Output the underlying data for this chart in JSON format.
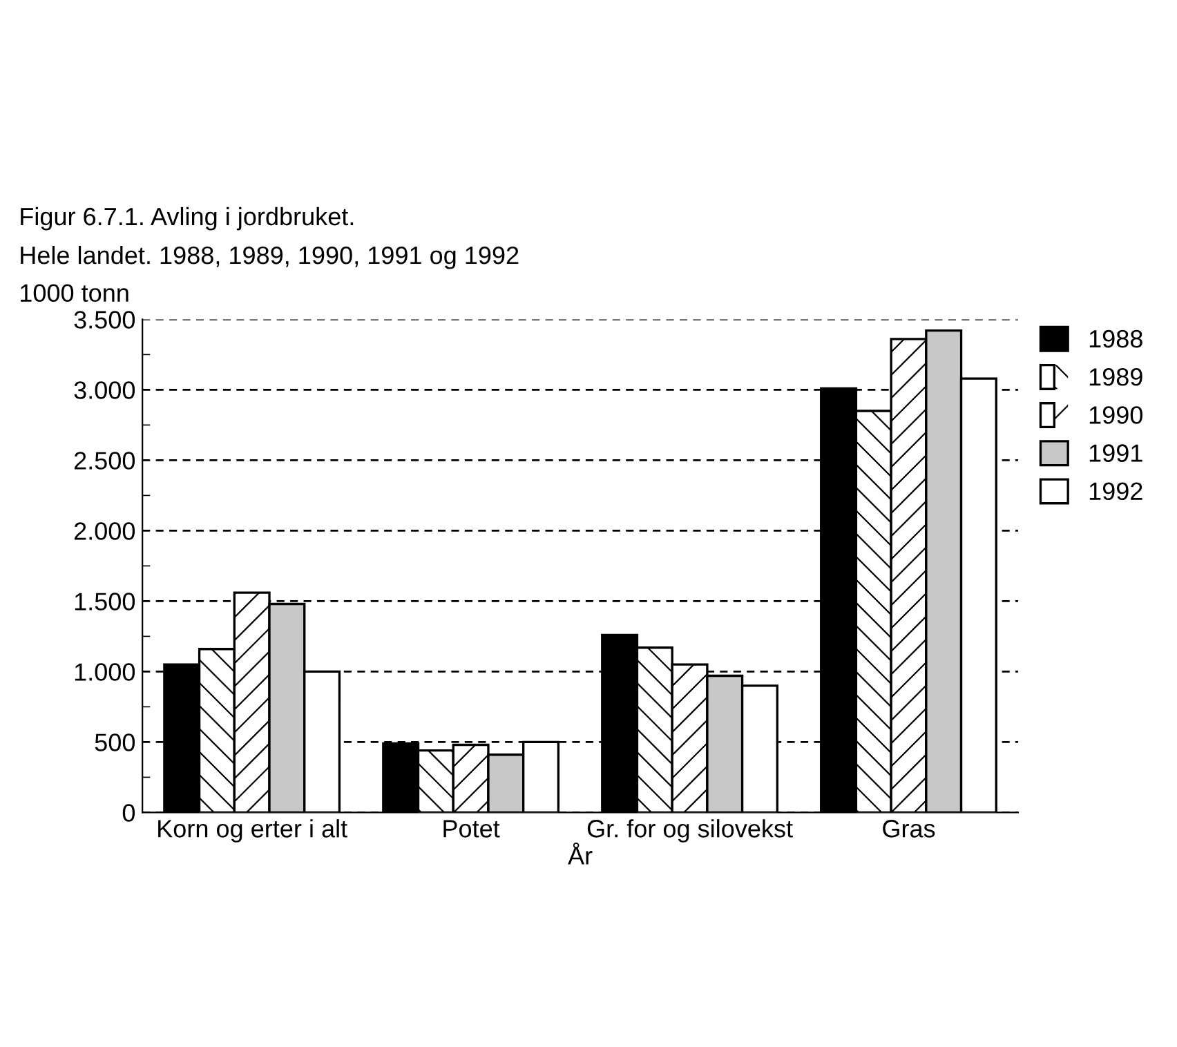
{
  "chart_data": {
    "type": "bar",
    "title": "Figur 6.7.1. Avling i jordbruket.",
    "subtitle": "Hele landet. 1988, 1989, 1990, 1991 og 1992",
    "ylabel": "1000 tonn",
    "xlabel": "År",
    "categories": [
      "Korn og erter i alt",
      "Potet",
      "Gr. for og silovekst",
      "Gras"
    ],
    "series": [
      {
        "name": "1988",
        "color": "#000000",
        "values": [
          1050,
          490,
          1260,
          3010
        ]
      },
      {
        "name": "1989",
        "color": "#ffffff",
        "values": [
          1160,
          440,
          1170,
          2850
        ]
      },
      {
        "name": "1990",
        "color": "#ffffff",
        "values": [
          1560,
          480,
          1050,
          3360
        ]
      },
      {
        "name": "1991",
        "color": "#c8c8c8",
        "values": [
          1480,
          410,
          970,
          3420
        ]
      },
      {
        "name": "1992",
        "color": "#ffffff",
        "values": [
          1000,
          500,
          900,
          3080
        ]
      }
    ],
    "ylim": [
      0,
      3500
    ],
    "yticks": [
      0,
      500,
      {
        "value": 1000,
        "label": "1.000"
      },
      {
        "value": 1500,
        "label": "1.500"
      },
      {
        "value": 2000,
        "label": "2.000"
      },
      {
        "value": 2500,
        "label": "2.500"
      },
      {
        "value": 3000,
        "label": "3.000"
      },
      {
        "value": 3500,
        "label": "3.500"
      }
    ],
    "grid": "y",
    "legend": "top right"
  }
}
